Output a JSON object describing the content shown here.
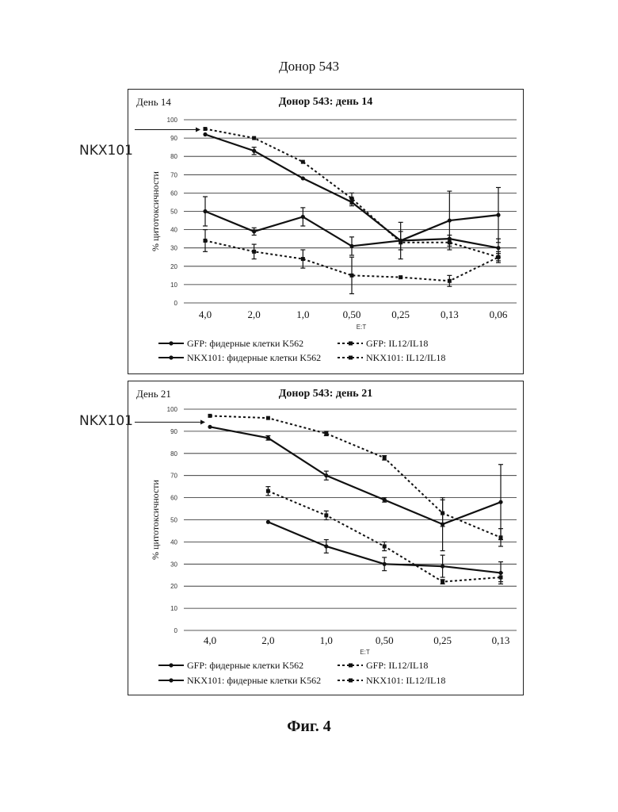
{
  "page": {
    "title": "Донор 543",
    "caption": "Фиг. 4"
  },
  "colors": {
    "line": "#111111",
    "grid": "#222222",
    "frame": "#222222"
  },
  "chart_data": [
    {
      "type": "line",
      "day_label": "День 14",
      "side_label": "NKX101",
      "title": "Донор 543: день 14",
      "xlabel": "E:T",
      "ylabel": "% цитотоксичности",
      "ylim": [
        0,
        100
      ],
      "yticks": [
        0,
        10,
        20,
        30,
        40,
        50,
        60,
        70,
        80,
        90,
        100
      ],
      "grid": true,
      "legend_position": "bottom",
      "categories": [
        "4,0",
        "2,0",
        "1,0",
        "0,50",
        "0,25",
        "0,13",
        "0,06"
      ],
      "series": [
        {
          "name": "GFP: фидерные клетки K562",
          "style": "solid",
          "values": [
            50,
            39,
            47,
            31,
            34,
            45,
            48
          ],
          "errors": [
            8,
            2,
            5,
            5,
            5,
            16,
            15
          ]
        },
        {
          "name": "GFP: IL12/IL18",
          "style": "dashed",
          "values": [
            34,
            28,
            24,
            15,
            14,
            12,
            25
          ],
          "errors": [
            6,
            4,
            5,
            10,
            0,
            3,
            2
          ]
        },
        {
          "name": "NKX101: фидерные клетки K562",
          "style": "solid",
          "values": [
            92,
            83,
            68,
            55,
            34,
            35,
            30
          ],
          "errors": [
            0,
            2,
            0,
            2,
            10,
            2,
            5
          ]
        },
        {
          "name": "NKX101: IL12/IL18",
          "style": "dashed",
          "values": [
            95,
            90,
            77,
            57,
            33,
            33,
            25
          ],
          "errors": [
            0,
            0,
            0,
            3,
            0,
            2,
            3
          ]
        }
      ]
    },
    {
      "type": "line",
      "day_label": "День 21",
      "side_label": "NKX101",
      "title": "Донор 543: день 21",
      "xlabel": "E:T",
      "ylabel": "% цитотоксичности",
      "ylim": [
        0,
        100
      ],
      "yticks": [
        0,
        10,
        20,
        30,
        40,
        50,
        60,
        70,
        80,
        90,
        100
      ],
      "grid": true,
      "legend_position": "bottom",
      "categories": [
        "4,0",
        "2,0",
        "1,0",
        "0,50",
        "0,25",
        "0,13"
      ],
      "series": [
        {
          "name": "GFP: фидерные клетки K562",
          "style": "solid",
          "values": [
            null,
            49,
            38,
            30,
            29,
            26
          ],
          "errors": [
            0,
            0,
            3,
            3,
            5,
            5
          ]
        },
        {
          "name": "GFP: IL12/IL18",
          "style": "dashed",
          "values": [
            null,
            63,
            52,
            38,
            22,
            24
          ],
          "errors": [
            0,
            2,
            2,
            2,
            1,
            2
          ]
        },
        {
          "name": "NKX101: фидерные клетки K562",
          "style": "solid",
          "values": [
            92,
            87,
            70,
            59,
            48,
            58
          ],
          "errors": [
            0,
            1,
            2,
            1,
            12,
            17
          ]
        },
        {
          "name": "NKX101: IL12/IL18",
          "style": "dashed",
          "values": [
            97,
            96,
            89,
            78,
            53,
            42
          ],
          "errors": [
            0,
            0,
            1,
            1,
            6,
            4
          ]
        }
      ]
    }
  ]
}
